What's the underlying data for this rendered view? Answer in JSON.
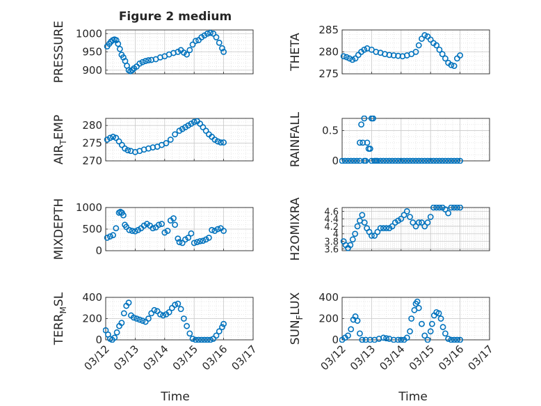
{
  "figure": {
    "title": "Figure 2 medium",
    "xlabel": "Time",
    "marker_color": "#0072BD",
    "axis_color": "#262626",
    "grid_color": "#dcdcdc",
    "xticks": [
      "03/12",
      "03/13",
      "03/14",
      "03/15",
      "03/16",
      "03/17"
    ]
  },
  "chart_data": [
    {
      "type": "scatter",
      "ylabel": "PRESSURE",
      "ylim": [
        890,
        1010
      ],
      "yticks": [
        "900",
        "950",
        "1000"
      ],
      "xlim": [
        0,
        5
      ],
      "grid": true,
      "x": [
        0.05,
        0.12,
        0.18,
        0.24,
        0.3,
        0.36,
        0.42,
        0.48,
        0.54,
        0.6,
        0.66,
        0.72,
        0.78,
        0.84,
        0.9,
        0.96,
        1.05,
        1.15,
        1.25,
        1.35,
        1.45,
        1.55,
        1.7,
        1.85,
        2.0,
        2.15,
        2.3,
        2.45,
        2.55,
        2.65,
        2.75,
        2.85,
        2.95,
        3.05,
        3.15,
        3.25,
        3.35,
        3.45,
        3.55,
        3.65,
        3.75,
        3.85,
        3.95,
        4.0
      ],
      "y": [
        965,
        972,
        978,
        982,
        984,
        982,
        972,
        958,
        942,
        935,
        925,
        912,
        900,
        897,
        900,
        905,
        910,
        918,
        922,
        925,
        927,
        928,
        930,
        935,
        938,
        943,
        947,
        950,
        955,
        948,
        943,
        955,
        970,
        980,
        982,
        990,
        995,
        1000,
        1002,
        1000,
        990,
        975,
        960,
        950
      ]
    },
    {
      "type": "scatter",
      "ylabel": "THETA",
      "ylim": [
        275,
        285
      ],
      "yticks": [
        "275",
        "280",
        "285"
      ],
      "xlim": [
        0,
        5
      ],
      "grid": true,
      "x": [
        0.05,
        0.15,
        0.25,
        0.35,
        0.45,
        0.55,
        0.65,
        0.75,
        0.85,
        1.0,
        1.15,
        1.3,
        1.45,
        1.6,
        1.75,
        1.9,
        2.05,
        2.2,
        2.35,
        2.5,
        2.6,
        2.7,
        2.8,
        2.9,
        3.0,
        3.1,
        3.2,
        3.3,
        3.4,
        3.5,
        3.6,
        3.7,
        3.8,
        3.9,
        4.0
      ],
      "y": [
        279,
        278.8,
        278.5,
        278.2,
        278.5,
        279.3,
        280,
        280.5,
        280.8,
        280.5,
        280,
        279.8,
        279.5,
        279.3,
        279.2,
        279.1,
        279,
        279.2,
        279.5,
        280,
        281.5,
        283,
        283.8,
        283.5,
        282.8,
        282,
        281.5,
        280.5,
        279.5,
        278.5,
        277.5,
        277,
        276.8,
        278.5,
        279.2
      ]
    },
    {
      "type": "scatter",
      "ylabel": "AIR_TEMP",
      "ylim": [
        270,
        282
      ],
      "yticks": [
        "270",
        "275",
        "280"
      ],
      "xlim": [
        0,
        5
      ],
      "grid": true,
      "x": [
        0.05,
        0.15,
        0.25,
        0.35,
        0.45,
        0.55,
        0.65,
        0.75,
        0.85,
        1.0,
        1.15,
        1.3,
        1.45,
        1.6,
        1.75,
        1.9,
        2.05,
        2.2,
        2.35,
        2.5,
        2.6,
        2.7,
        2.8,
        2.9,
        3.0,
        3.1,
        3.2,
        3.3,
        3.4,
        3.5,
        3.6,
        3.7,
        3.8,
        3.9,
        4.0
      ],
      "y": [
        276,
        276.5,
        276.8,
        276.5,
        275.5,
        274.5,
        273.5,
        273,
        272.8,
        272.5,
        272.8,
        273.2,
        273.5,
        273.8,
        274,
        274.5,
        275,
        276,
        277.5,
        278.5,
        279,
        279.5,
        280,
        280.5,
        281,
        281.2,
        280.5,
        279.5,
        278.5,
        277.5,
        276.8,
        276,
        275.5,
        275.2,
        275.2
      ]
    },
    {
      "type": "scatter",
      "ylabel": "RAINFALL",
      "ylim": [
        0,
        0.7
      ],
      "yticks": [
        "0",
        "0.5"
      ],
      "xlim": [
        0,
        5
      ],
      "grid": true,
      "x": [
        0.0,
        0.1,
        0.2,
        0.3,
        0.4,
        0.5,
        0.6,
        0.6,
        0.65,
        0.7,
        0.75,
        0.75,
        0.8,
        0.85,
        0.9,
        0.95,
        1.0,
        1.0,
        1.05,
        1.1,
        1.15,
        1.2,
        1.3,
        1.4,
        1.5,
        1.6,
        1.7,
        1.8,
        1.9,
        2.0,
        2.1,
        2.2,
        2.3,
        2.4,
        2.5,
        2.6,
        2.7,
        2.8,
        2.9,
        3.0,
        3.1,
        3.2,
        3.3,
        3.4,
        3.5,
        3.6,
        3.7,
        3.8,
        3.9,
        4.0
      ],
      "y": [
        0,
        0,
        0,
        0,
        0,
        0,
        0,
        0.3,
        0.6,
        0.3,
        0,
        0.7,
        0,
        0.3,
        0.2,
        0.2,
        0.7,
        0,
        0.7,
        0,
        0,
        0,
        0,
        0,
        0,
        0,
        0,
        0,
        0,
        0,
        0,
        0,
        0,
        0,
        0,
        0,
        0,
        0,
        0,
        0,
        0,
        0,
        0,
        0,
        0,
        0,
        0,
        0,
        0,
        0
      ]
    },
    {
      "type": "scatter",
      "ylabel": "MIXDEPTH",
      "ylim": [
        0,
        1000
      ],
      "yticks": [
        "0",
        "500",
        "1000"
      ],
      "xlim": [
        0,
        5
      ],
      "grid": true,
      "x": [
        0.05,
        0.15,
        0.25,
        0.35,
        0.45,
        0.5,
        0.55,
        0.6,
        0.65,
        0.7,
        0.8,
        0.9,
        1.0,
        1.1,
        1.2,
        1.3,
        1.4,
        1.5,
        1.6,
        1.7,
        1.8,
        1.9,
        2.0,
        2.1,
        2.2,
        2.3,
        2.35,
        2.45,
        2.5,
        2.6,
        2.7,
        2.8,
        2.9,
        3.0,
        3.1,
        3.2,
        3.3,
        3.4,
        3.5,
        3.6,
        3.7,
        3.8,
        3.9,
        4.0
      ],
      "y": [
        300,
        330,
        360,
        520,
        880,
        900,
        880,
        820,
        600,
        550,
        480,
        460,
        450,
        480,
        520,
        580,
        620,
        580,
        520,
        540,
        600,
        620,
        420,
        460,
        700,
        750,
        600,
        280,
        200,
        180,
        260,
        300,
        400,
        180,
        200,
        220,
        230,
        260,
        300,
        480,
        460,
        500,
        520,
        460
      ]
    },
    {
      "type": "scatter",
      "ylabel": "H2OMIXRA",
      "ylim": [
        3.55,
        4.7
      ],
      "yticks": [
        "3.6",
        "3.8",
        "4",
        "4.2",
        "4.4",
        "4.6"
      ],
      "xlim": [
        0,
        5
      ],
      "grid": true,
      "x": [
        0.05,
        0.12,
        0.2,
        0.28,
        0.36,
        0.44,
        0.52,
        0.6,
        0.68,
        0.76,
        0.84,
        0.92,
        1.0,
        1.1,
        1.2,
        1.3,
        1.4,
        1.5,
        1.6,
        1.7,
        1.8,
        1.9,
        2.0,
        2.1,
        2.2,
        2.3,
        2.4,
        2.5,
        2.6,
        2.7,
        2.8,
        2.9,
        3.0,
        3.1,
        3.2,
        3.3,
        3.4,
        3.5,
        3.6,
        3.7,
        3.8,
        3.9,
        4.0
      ],
      "y": [
        3.8,
        3.7,
        3.62,
        3.7,
        3.85,
        4.0,
        4.2,
        4.35,
        4.5,
        4.3,
        4.15,
        4.05,
        3.95,
        3.95,
        4.05,
        4.15,
        4.15,
        4.15,
        4.15,
        4.2,
        4.3,
        4.35,
        4.4,
        4.5,
        4.6,
        4.45,
        4.3,
        4.2,
        4.3,
        4.3,
        4.2,
        4.3,
        4.45,
        4.7,
        4.7,
        4.7,
        4.7,
        4.65,
        4.55,
        4.7,
        4.7,
        4.7,
        4.7
      ]
    },
    {
      "type": "scatter",
      "ylabel": "TERR_MSL",
      "ylim": [
        0,
        400
      ],
      "yticks": [
        "0",
        "200",
        "400"
      ],
      "xlim": [
        0,
        5
      ],
      "grid": true,
      "x": [
        0.0,
        0.08,
        0.15,
        0.22,
        0.3,
        0.38,
        0.46,
        0.54,
        0.62,
        0.7,
        0.78,
        0.86,
        0.95,
        1.05,
        1.15,
        1.25,
        1.35,
        1.45,
        1.55,
        1.65,
        1.75,
        1.85,
        1.95,
        2.05,
        2.15,
        2.25,
        2.35,
        2.45,
        2.55,
        2.65,
        2.75,
        2.85,
        2.95,
        3.05,
        3.15,
        3.25,
        3.35,
        3.45,
        3.55,
        3.65,
        3.75,
        3.85,
        3.95,
        4.0
      ],
      "y": [
        90,
        50,
        10,
        0,
        20,
        70,
        130,
        160,
        250,
        320,
        350,
        230,
        210,
        200,
        190,
        180,
        170,
        200,
        250,
        280,
        270,
        240,
        230,
        240,
        260,
        300,
        330,
        340,
        290,
        200,
        130,
        60,
        10,
        0,
        0,
        0,
        0,
        0,
        0,
        10,
        40,
        80,
        120,
        150
      ]
    },
    {
      "type": "scatter",
      "ylabel": "SUN_FLUX",
      "ylim": [
        0,
        400
      ],
      "yticks": [
        "0",
        "200",
        "400"
      ],
      "xlim": [
        0,
        5
      ],
      "grid": true,
      "x": [
        0.0,
        0.1,
        0.2,
        0.3,
        0.38,
        0.45,
        0.52,
        0.6,
        0.68,
        0.8,
        0.95,
        1.1,
        1.25,
        1.4,
        1.5,
        1.6,
        1.75,
        1.9,
        2.0,
        2.1,
        2.2,
        2.3,
        2.35,
        2.45,
        2.5,
        2.55,
        2.6,
        2.7,
        2.8,
        2.9,
        3.0,
        3.05,
        3.12,
        3.2,
        3.28,
        3.35,
        3.42,
        3.5,
        3.6,
        3.7,
        3.8,
        3.9,
        4.0
      ],
      "y": [
        0,
        20,
        40,
        100,
        190,
        220,
        180,
        60,
        0,
        0,
        0,
        0,
        10,
        20,
        15,
        10,
        0,
        0,
        0,
        0,
        20,
        80,
        200,
        280,
        340,
        360,
        300,
        150,
        40,
        0,
        80,
        150,
        230,
        260,
        250,
        200,
        120,
        60,
        10,
        0,
        0,
        0,
        0
      ]
    }
  ]
}
